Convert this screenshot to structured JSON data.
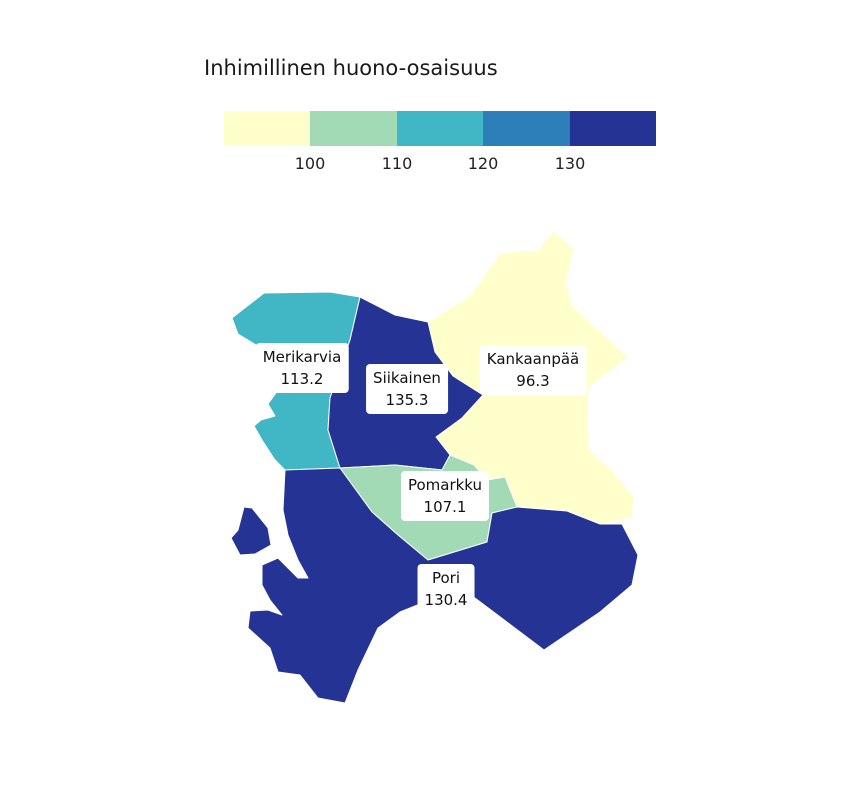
{
  "legend": {
    "title": "Inhimillinen huono-osaisuus",
    "bins": [
      {
        "color": "#ffffcc"
      },
      {
        "color": "#a1dab4"
      },
      {
        "color": "#41b6c4"
      },
      {
        "color": "#2c7fb8"
      },
      {
        "color": "#253494"
      }
    ],
    "ticks": [
      "100",
      "110",
      "120",
      "130"
    ]
  },
  "regions": [
    {
      "name": "Merikarvia",
      "value": "113.2",
      "color": "#41b6c4"
    },
    {
      "name": "Siikainen",
      "value": "135.3",
      "color": "#253494"
    },
    {
      "name": "Kankaanpää",
      "value": "96.3",
      "color": "#ffffcc"
    },
    {
      "name": "Pomarkku",
      "value": "107.1",
      "color": "#a1dab4"
    },
    {
      "name": "Pori",
      "value": "130.4",
      "color": "#253494"
    }
  ]
}
